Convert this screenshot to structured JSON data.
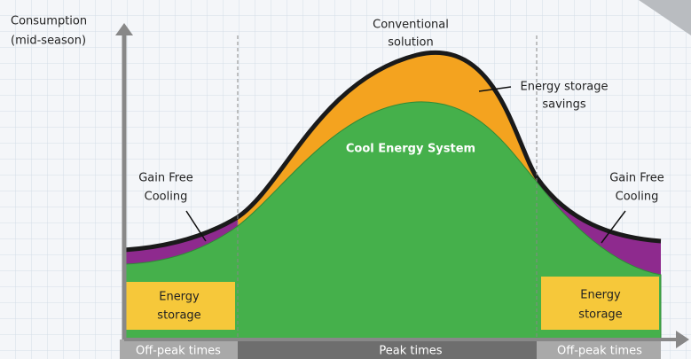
{
  "axis": {
    "y_label": [
      "Consumption",
      "(mid-season)"
    ]
  },
  "annotations": {
    "conventional": [
      "Conventional",
      "solution"
    ],
    "savings": [
      "Energy storage",
      "savings"
    ],
    "system": "Cool Energy System",
    "gain_left": [
      "Gain Free",
      "Cooling"
    ],
    "gain_right": [
      "Gain Free",
      "Cooling"
    ],
    "storage_left": [
      "Energy",
      "storage"
    ],
    "storage_right": [
      "Energy",
      "storage"
    ]
  },
  "time_bands": [
    "Off-peak times",
    "Peak times",
    "Off-peak times"
  ]
}
